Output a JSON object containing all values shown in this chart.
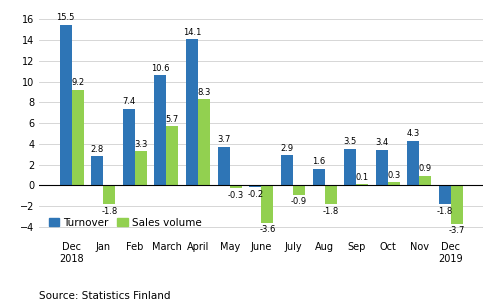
{
  "categories": [
    "Dec\n2018",
    "Jan",
    "Feb",
    "March",
    "April",
    "May",
    "June",
    "July",
    "Aug",
    "Sep",
    "Oct",
    "Nov",
    "Dec\n2019"
  ],
  "turnover": [
    15.5,
    2.8,
    7.4,
    10.6,
    14.1,
    3.7,
    -0.2,
    2.9,
    1.6,
    3.5,
    3.4,
    4.3,
    -1.8
  ],
  "sales_volume": [
    9.2,
    -1.8,
    3.3,
    5.7,
    8.3,
    -0.3,
    -3.6,
    -0.9,
    -1.8,
    0.1,
    0.3,
    0.9,
    -3.7
  ],
  "turnover_color": "#2e75b6",
  "sales_color": "#92d050",
  "ylim": [
    -5,
    17
  ],
  "yticks": [
    -4,
    -2,
    0,
    2,
    4,
    6,
    8,
    10,
    12,
    14,
    16
  ],
  "legend_labels": [
    "Turnover",
    "Sales volume"
  ],
  "source_text": "Source: Statistics Finland",
  "bar_width": 0.38,
  "label_fontsize": 6.0,
  "tick_fontsize": 7.0,
  "legend_fontsize": 7.5,
  "source_fontsize": 7.5
}
